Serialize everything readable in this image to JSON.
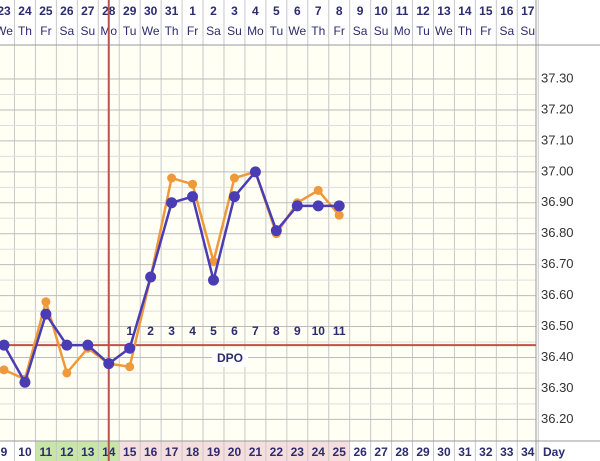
{
  "chart_data": {
    "type": "line",
    "dates": [
      "23",
      "24",
      "25",
      "26",
      "27",
      "28",
      "29",
      "30",
      "31",
      "1",
      "2",
      "3",
      "4",
      "5",
      "6",
      "7",
      "8",
      "9",
      "10",
      "11",
      "12",
      "13",
      "14",
      "15",
      "16",
      "17"
    ],
    "weekdays": [
      "We",
      "Th",
      "Fr",
      "Sa",
      "Su",
      "Mo",
      "Tu",
      "We",
      "Th",
      "Fr",
      "Sa",
      "Su",
      "Mo",
      "Tu",
      "We",
      "Th",
      "Fr",
      "Sa",
      "Su",
      "Mo",
      "Tu",
      "We",
      "Th",
      "Fr",
      "Sa",
      "Su"
    ],
    "cycle_days": [
      9,
      10,
      11,
      12,
      13,
      14,
      15,
      16,
      17,
      18,
      19,
      20,
      21,
      22,
      23,
      24,
      25,
      26,
      27,
      28,
      29,
      30,
      31,
      32,
      33,
      34
    ],
    "day_colors": [
      null,
      null,
      "#c8e6a8",
      "#c8e6a8",
      "#c8e6a8",
      "#c8e6a8",
      "#f6dede",
      "#f6dede",
      "#f6dede",
      "#f6dede",
      "#f6dede",
      "#f6dede",
      "#f6dede",
      "#f6dede",
      "#f6dede",
      "#f6dede",
      "#f6dede",
      null,
      null,
      null,
      null,
      null,
      null,
      null,
      null,
      null
    ],
    "x_label": "Day",
    "dpo": [
      null,
      null,
      null,
      null,
      null,
      null,
      1,
      2,
      3,
      4,
      5,
      6,
      7,
      8,
      9,
      10,
      11,
      null,
      null,
      null,
      null,
      null,
      null,
      null,
      null,
      null
    ],
    "dpo_label": "DPO",
    "coverline": 36.44,
    "coverline_color": "#c0504d",
    "ovulation_day": 14,
    "series": [
      {
        "color": "#f0993a",
        "values": [
          36.36,
          36.33,
          36.58,
          36.35,
          36.43,
          36.38,
          36.37,
          36.66,
          36.98,
          36.96,
          36.71,
          36.98,
          37.0,
          36.8,
          36.9,
          36.94,
          36.86,
          null,
          null,
          null,
          null,
          null,
          null,
          null,
          null,
          null
        ]
      },
      {
        "color": "#4a3cb4",
        "values": [
          36.44,
          36.32,
          36.54,
          36.44,
          36.44,
          36.38,
          36.43,
          36.66,
          36.9,
          36.92,
          36.65,
          36.92,
          37.0,
          36.81,
          36.89,
          36.89,
          36.89,
          null,
          null,
          null,
          null,
          null,
          null,
          null,
          null,
          null
        ]
      }
    ],
    "ylim": [
      36.13,
      37.41
    ],
    "yticks": [
      {
        "value": 36.2,
        "label": "36.20"
      },
      {
        "value": 36.3,
        "label": "36.30"
      },
      {
        "value": 36.4,
        "label": "36.40"
      },
      {
        "value": 36.5,
        "label": "36.50"
      },
      {
        "value": 36.6,
        "label": "36.60"
      },
      {
        "value": 36.7,
        "label": "36.70"
      },
      {
        "value": 36.8,
        "label": "36.80"
      },
      {
        "value": 36.9,
        "label": "36.90"
      },
      {
        "value": 37.0,
        "label": "37.00"
      },
      {
        "value": 37.1,
        "label": "37.10"
      },
      {
        "value": 37.2,
        "label": "37.20"
      },
      {
        "value": 37.3,
        "label": "37.30"
      }
    ],
    "grid": true
  }
}
